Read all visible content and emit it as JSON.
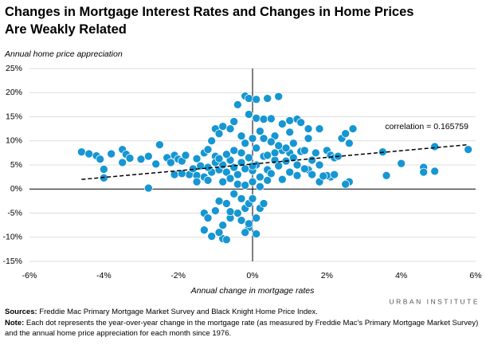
{
  "chart_data": {
    "type": "scatter",
    "title": "Changes in Mortgage Interest Rates and Changes in Home Prices Are Weakly Related",
    "y_axis_title": "Annual home price appreciation",
    "x_axis_title": "Annual change in mortgage rates",
    "annotation": "correlation = 0.165759",
    "color": "#1696d2",
    "xlim": [
      -6,
      6
    ],
    "xticks": [
      {
        "value": -6,
        "label": "-6%"
      },
      {
        "value": -4,
        "label": "-4%"
      },
      {
        "value": -2,
        "label": "-2%"
      },
      {
        "value": 0,
        "label": "0%"
      },
      {
        "value": 2,
        "label": "2%"
      },
      {
        "value": 4,
        "label": "4%"
      },
      {
        "value": 6,
        "label": "6%"
      }
    ],
    "ylim": [
      -15,
      25
    ],
    "yticks": [
      {
        "value": -15,
        "label": "-15%"
      },
      {
        "value": -10,
        "label": "-10%"
      },
      {
        "value": -5,
        "label": "-5%"
      },
      {
        "value": 0,
        "label": "0%"
      },
      {
        "value": 5,
        "label": "5%"
      },
      {
        "value": 10,
        "label": "10%"
      },
      {
        "value": 15,
        "label": "15%"
      },
      {
        "value": 20,
        "label": "20%"
      },
      {
        "value": 25,
        "label": "25%"
      }
    ],
    "grid": true,
    "trendline": {
      "x": [
        -4.6,
        5.8
      ],
      "values": [
        2.0,
        9.2
      ]
    },
    "x": [
      -4.6,
      -4.4,
      -4.2,
      -4.1,
      -4.0,
      -4.0,
      -3.8,
      -3.5,
      -3.4,
      -3.5,
      -3.3,
      -3.0,
      -2.8,
      -2.8,
      -2.6,
      -2.5,
      -2.3,
      -2.2,
      -2.1,
      -2.0,
      -1.9,
      -1.8,
      -1.7,
      -1.6,
      -1.5,
      -1.4,
      -1.3,
      -1.2,
      -1.1,
      -1.0,
      -2.1,
      -1.9,
      -1.5,
      -1.3,
      -1.2,
      -1.0,
      -0.9,
      -1.1,
      -0.8,
      -0.6,
      -0.5,
      -0.4,
      -0.2,
      -0.1,
      0.1,
      0.4,
      0.7,
      -0.1,
      0.1,
      0.3,
      0.5,
      -0.3,
      -0.2,
      0.0,
      0.2,
      -1.3,
      -1.2,
      -1.3,
      -1.1,
      -0.8,
      -0.7,
      -0.9,
      -0.8,
      -0.6,
      -0.4,
      -0.2,
      -0.1,
      0.0,
      -0.1,
      -0.2,
      0.1,
      0.2,
      0.3,
      -0.3,
      -0.5,
      -1.0,
      -0.7,
      -0.6,
      -0.9,
      -0.3,
      -0.1,
      0.1,
      1.0,
      1.2,
      1.3,
      1.5,
      1.8,
      0.8,
      0.6,
      1.0,
      1.5,
      2.0,
      2.1,
      2.2,
      2.3,
      2.4,
      2.5,
      2.6,
      2.7,
      2.6,
      2.5,
      2.1,
      2.0,
      1.8,
      1.5,
      3.5,
      3.6,
      4.0,
      4.6,
      4.6,
      4.9,
      4.9,
      5.8,
      2.2,
      1.9,
      1.6,
      1.2,
      1.0,
      0.8,
      0.5,
      0.3,
      0.6,
      -0.9,
      -0.8,
      -0.7,
      -0.6,
      -0.5,
      -0.4,
      -0.3,
      -0.2,
      -0.1,
      0.0,
      0.1,
      0.2,
      0.3,
      0.4,
      0.5,
      0.6,
      0.7,
      0.8,
      0.9,
      1.0,
      1.1,
      1.2,
      1.3,
      1.4,
      -0.8,
      -0.6,
      -0.4,
      -0.2,
      0.0,
      0.2,
      0.4,
      -1.2,
      -1.0,
      -0.7,
      -0.5,
      -0.3,
      0.1,
      0.4,
      0.7,
      0.9,
      1.1,
      1.4,
      1.7,
      1.8,
      1.6,
      -1.5,
      -0.9,
      0.0
    ],
    "values": [
      7.7,
      7.3,
      6.9,
      6.2,
      4.1,
      2.3,
      7.3,
      8.2,
      7.2,
      5.5,
      6.4,
      6.2,
      6.8,
      0.2,
      5.2,
      9.2,
      6.5,
      5.5,
      7.0,
      6.2,
      5.8,
      7.0,
      3.0,
      4.2,
      6.3,
      4.8,
      7.5,
      8.2,
      3.5,
      6.8,
      3.0,
      3.2,
      2.8,
      2.5,
      1.8,
      12.5,
      11.5,
      10.0,
      13.0,
      12.5,
      14.0,
      17.5,
      19.3,
      18.8,
      18.6,
      18.8,
      19.2,
      15.5,
      14.7,
      14.5,
      14.6,
      11.0,
      9.5,
      10.5,
      12.0,
      -5.0,
      -6.0,
      -8.5,
      -9.8,
      -10.3,
      -10.5,
      -9.0,
      -7.5,
      -6.0,
      -5.0,
      -4.0,
      -3.0,
      -2.0,
      -8.0,
      -9.0,
      -6.0,
      -4.0,
      -3.0,
      -2.0,
      -1.0,
      -4.5,
      -3.0,
      -4.7,
      -2.5,
      -6.5,
      -7.2,
      -9.3,
      14.2,
      14.5,
      13.8,
      12.5,
      12.5,
      13.5,
      11.0,
      11.8,
      10.5,
      8.0,
      7.0,
      6.5,
      6.8,
      10.5,
      11.5,
      9.5,
      12.5,
      1.5,
      1.0,
      2.5,
      2.8,
      1.5,
      4.0,
      7.7,
      2.8,
      5.3,
      4.5,
      3.5,
      3.7,
      8.8,
      8.2,
      3.0,
      2.7,
      6.0,
      5.0,
      7.5,
      8.0,
      9.8,
      10.5,
      6.0,
      4.0,
      5.0,
      3.5,
      6.0,
      4.5,
      3.0,
      5.5,
      4.2,
      6.5,
      3.8,
      5.0,
      2.5,
      6.8,
      4.0,
      3.2,
      7.5,
      4.8,
      2.0,
      5.8,
      3.5,
      6.5,
      2.8,
      7.8,
      4.2,
      1.5,
      2.2,
      1.0,
      0.8,
      1.5,
      0.5,
      1.8,
      4.5,
      5.5,
      7.2,
      8.0,
      7.5,
      8.5,
      7.0,
      9.0,
      8.5,
      9.5,
      8.0,
      7.5,
      5.0,
      3.0,
      1.5,
      6.3,
      4.8
    ]
  },
  "footer": {
    "sources_label": "Sources:",
    "sources": "Freddie Mac Primary Mortgage Market Survey and Black Knight Home Price Index.",
    "note_label": "Note:",
    "note": "Each dot represents the year-over-year change in the mortgage rate (as measured by Freddie Mac's Primary Mortgage Market Survey) and the annual home price appreciation for each month since 1976.",
    "logo": "URBAN INSTITUTE"
  }
}
